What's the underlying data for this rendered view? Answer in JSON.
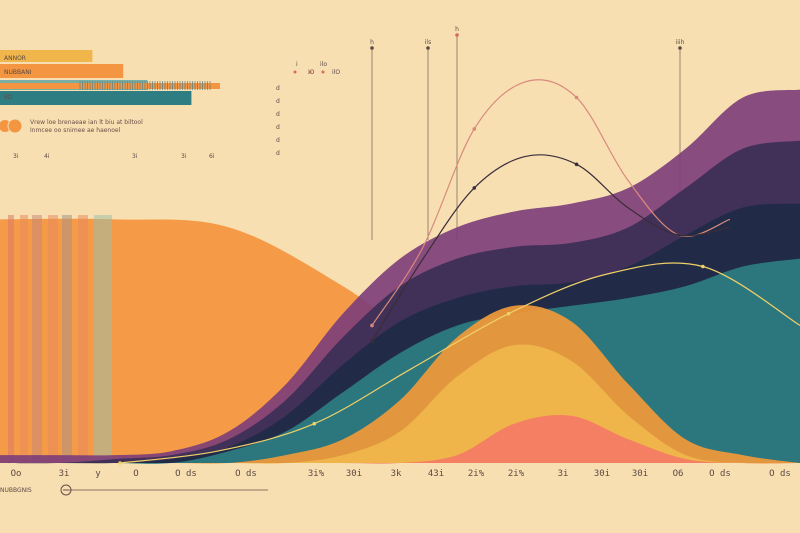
{
  "chart_data": {
    "type": "area",
    "title": "",
    "xlabel": "",
    "ylabel": "",
    "grid": false,
    "x_tick_labels": [
      "Oo",
      "3i",
      "y",
      "O",
      "O ds",
      "O ds",
      "3i%",
      "30i",
      "3k",
      "43i",
      "2i%",
      "2i%",
      "3i",
      "30i",
      "30i",
      "O6",
      "O ds",
      "O ds"
    ],
    "x_tick_label_emphasis": [
      false,
      false,
      false,
      true,
      true,
      true,
      false,
      false,
      false,
      false,
      false,
      false,
      false,
      false,
      false,
      false,
      true,
      true
    ],
    "series": [
      {
        "color": "#7e3f7a",
        "values": [
          0.02,
          0.02,
          0.02,
          0.03,
          0.08,
          0.2,
          0.38,
          0.52,
          0.6,
          0.64,
          0.66,
          0.7,
          0.8,
          0.93,
          0.95
        ]
      },
      {
        "color": "#3b2f55",
        "values": [
          0.0,
          0.0,
          0.01,
          0.02,
          0.06,
          0.16,
          0.32,
          0.45,
          0.52,
          0.55,
          0.56,
          0.6,
          0.7,
          0.8,
          0.82
        ]
      },
      {
        "color": "#1e2a45",
        "values": [
          0.0,
          0.0,
          0.0,
          0.01,
          0.04,
          0.12,
          0.25,
          0.36,
          0.42,
          0.45,
          0.46,
          0.5,
          0.58,
          0.65,
          0.66
        ]
      },
      {
        "color": "#2e7d82",
        "values": [
          0.0,
          0.0,
          0.0,
          0.0,
          0.03,
          0.08,
          0.18,
          0.28,
          0.35,
          0.38,
          0.4,
          0.42,
          0.45,
          0.5,
          0.52
        ]
      },
      {
        "color": "#f29a38",
        "values": [
          0.0,
          0.0,
          0.0,
          0.0,
          0.0,
          0.02,
          0.06,
          0.16,
          0.32,
          0.4,
          0.36,
          0.2,
          0.06,
          0.02,
          0.0
        ]
      },
      {
        "color": "#f0b64b",
        "values": [
          0.0,
          0.0,
          0.0,
          0.0,
          0.0,
          0.0,
          0.02,
          0.08,
          0.22,
          0.3,
          0.26,
          0.12,
          0.02,
          0.0,
          0.0
        ]
      },
      {
        "color": "#f57b64",
        "values": [
          0.0,
          0.0,
          0.0,
          0.0,
          0.0,
          0.0,
          0.0,
          0.0,
          0.02,
          0.1,
          0.12,
          0.06,
          0.01,
          0.0,
          0.0
        ]
      }
    ],
    "orange_band": {
      "color": "#f49641",
      "values": [
        0.62,
        0.62,
        0.6,
        0.45,
        0.25,
        0.18,
        0.16,
        0.16
      ]
    },
    "overlay_lines": [
      {
        "color": "#d9897b",
        "values": [
          0.35,
          0.55,
          0.85,
          0.97,
          0.93,
          0.72,
          0.58,
          0.62
        ]
      },
      {
        "color": "#3a2d3a",
        "values": [
          0.31,
          0.52,
          0.7,
          0.78,
          0.76,
          0.65,
          0.58,
          0.6
        ]
      },
      {
        "color": "#f0d068",
        "values": [
          0.0,
          0.03,
          0.1,
          0.24,
          0.38,
          0.48,
          0.5,
          0.35
        ]
      }
    ],
    "top_bars": [
      {
        "color": "#f0b64b",
        "value": 0.42
      },
      {
        "color": "#f49641",
        "value": 0.56
      },
      {
        "color": "#7aaea2",
        "value": 0.67
      },
      {
        "color": "#2e7d82",
        "value": 0.87
      },
      {
        "color": "#f49641",
        "value": 1.0
      }
    ],
    "top_bar_labels": [
      "ANNOR",
      "NUBBANI",
      "ilO"
    ],
    "legend_text": [
      "Vrew loe brenaeae ian lt biu at biltool",
      "Inmcee oo snimee ae haenoel"
    ],
    "small_tick_labels": [
      "i",
      "iO",
      "ilo",
      "ilO"
    ],
    "left_axis_labels": [
      "d",
      "d",
      "d",
      "d",
      "d",
      "d"
    ],
    "bottom_label": "NUBBGNIS",
    "marker_labels": [
      "h",
      "ils",
      "h",
      "iiih"
    ],
    "code_labels": [
      "3i",
      "4i",
      "3i",
      "3i",
      "6i"
    ]
  }
}
